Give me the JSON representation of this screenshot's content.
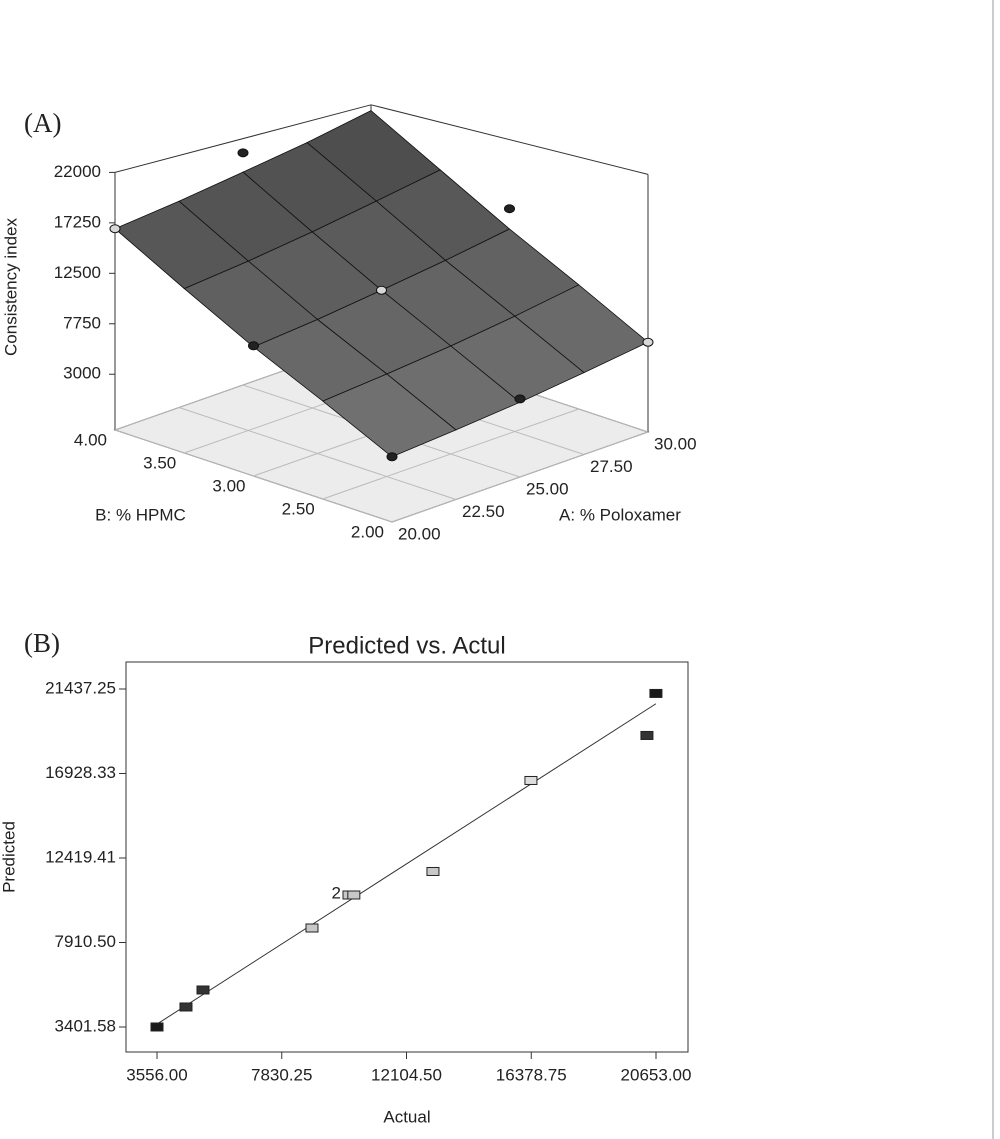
{
  "chart_data": [
    {
      "type": "surface",
      "panel_label": "(A)",
      "zlabel": "Consistency index",
      "xlabel": "A: % Poloxamer",
      "ylabel": "B: % HPMC",
      "x": [
        20,
        22.5,
        25,
        27.5,
        30
      ],
      "y": [
        2,
        2.5,
        3,
        3.5,
        4
      ],
      "z": [
        [
          3400,
          3900,
          4500,
          5300,
          6200
        ],
        [
          6400,
          7000,
          7700,
          8600,
          9700
        ],
        [
          9400,
          10100,
          11000,
          12000,
          13200
        ],
        [
          12900,
          13700,
          14700,
          15900,
          17200
        ],
        [
          16700,
          17600,
          18700,
          19900,
          21400
        ]
      ],
      "xlim": [
        20,
        30
      ],
      "ylim": [
        2,
        4
      ],
      "zlim": [
        -2250,
        22000
      ],
      "xticks": [
        {
          "value": 20,
          "label": "20.00"
        },
        {
          "value": 22.5,
          "label": "22.50"
        },
        {
          "value": 25,
          "label": "25.00"
        },
        {
          "value": 27.5,
          "label": "27.50"
        },
        {
          "value": 30,
          "label": "30.00"
        }
      ],
      "yticks": [
        {
          "value": 2,
          "label": "2.00"
        },
        {
          "value": 2.5,
          "label": "2.50"
        },
        {
          "value": 3,
          "label": "3.00"
        },
        {
          "value": 3.5,
          "label": "3.50"
        },
        {
          "value": 4,
          "label": "4.00"
        }
      ],
      "zticks": [
        3000,
        7750,
        12500,
        17250,
        22000
      ],
      "design_points": {
        "x": [
          20,
          25,
          30,
          20,
          30,
          25,
          20,
          25
        ],
        "y": [
          4,
          4,
          2,
          3,
          3,
          3,
          2,
          2
        ],
        "z": [
          16700,
          20600,
          6200,
          9500,
          15200,
          11000,
          3400,
          4800
        ],
        "colors": [
          "#d8d8d8",
          "#222222",
          "#d8d8d8",
          "#222222",
          "#222222",
          "#d8d8d8",
          "#222222",
          "#222222"
        ]
      }
    },
    {
      "type": "scatter",
      "panel_label": "(B)",
      "title": "Predicted vs. Actul",
      "xlabel": "Actual",
      "ylabel": "Predicted",
      "xlim": [
        2494,
        21749
      ],
      "ylim": [
        2067,
        22878
      ],
      "xticks": [
        {
          "value": 3556,
          "label": "3556.00"
        },
        7830.25,
        {
          "value": 12104.5,
          "label": "12104.50"
        },
        16378.75,
        {
          "value": 20653,
          "label": "20653.00"
        }
      ],
      "yticks": [
        3401.58,
        {
          "value": 7910.5,
          "label": "7910.50"
        },
        12419.41,
        16928.33,
        21437.25
      ],
      "diagonal": true,
      "series": [
        {
          "x": [
            3556,
            4549,
            5132,
            8866,
            10134,
            10300,
            13011,
            16368,
            20342,
            20650
          ],
          "values": [
            3402,
            4469,
            5376,
            8684,
            10445,
            10445,
            11700,
            16556,
            18958,
            21200
          ],
          "colors": [
            "#1a1a1a",
            "#333333",
            "#333333",
            "#c8c8c8",
            "#c8c8c8",
            "#c8c8c8",
            "#c8c8c8",
            "#dddddd",
            "#333333",
            "#1a1a1a"
          ],
          "point_labels": [
            null,
            null,
            null,
            null,
            "2",
            null,
            null,
            null,
            null,
            null
          ]
        }
      ]
    }
  ]
}
